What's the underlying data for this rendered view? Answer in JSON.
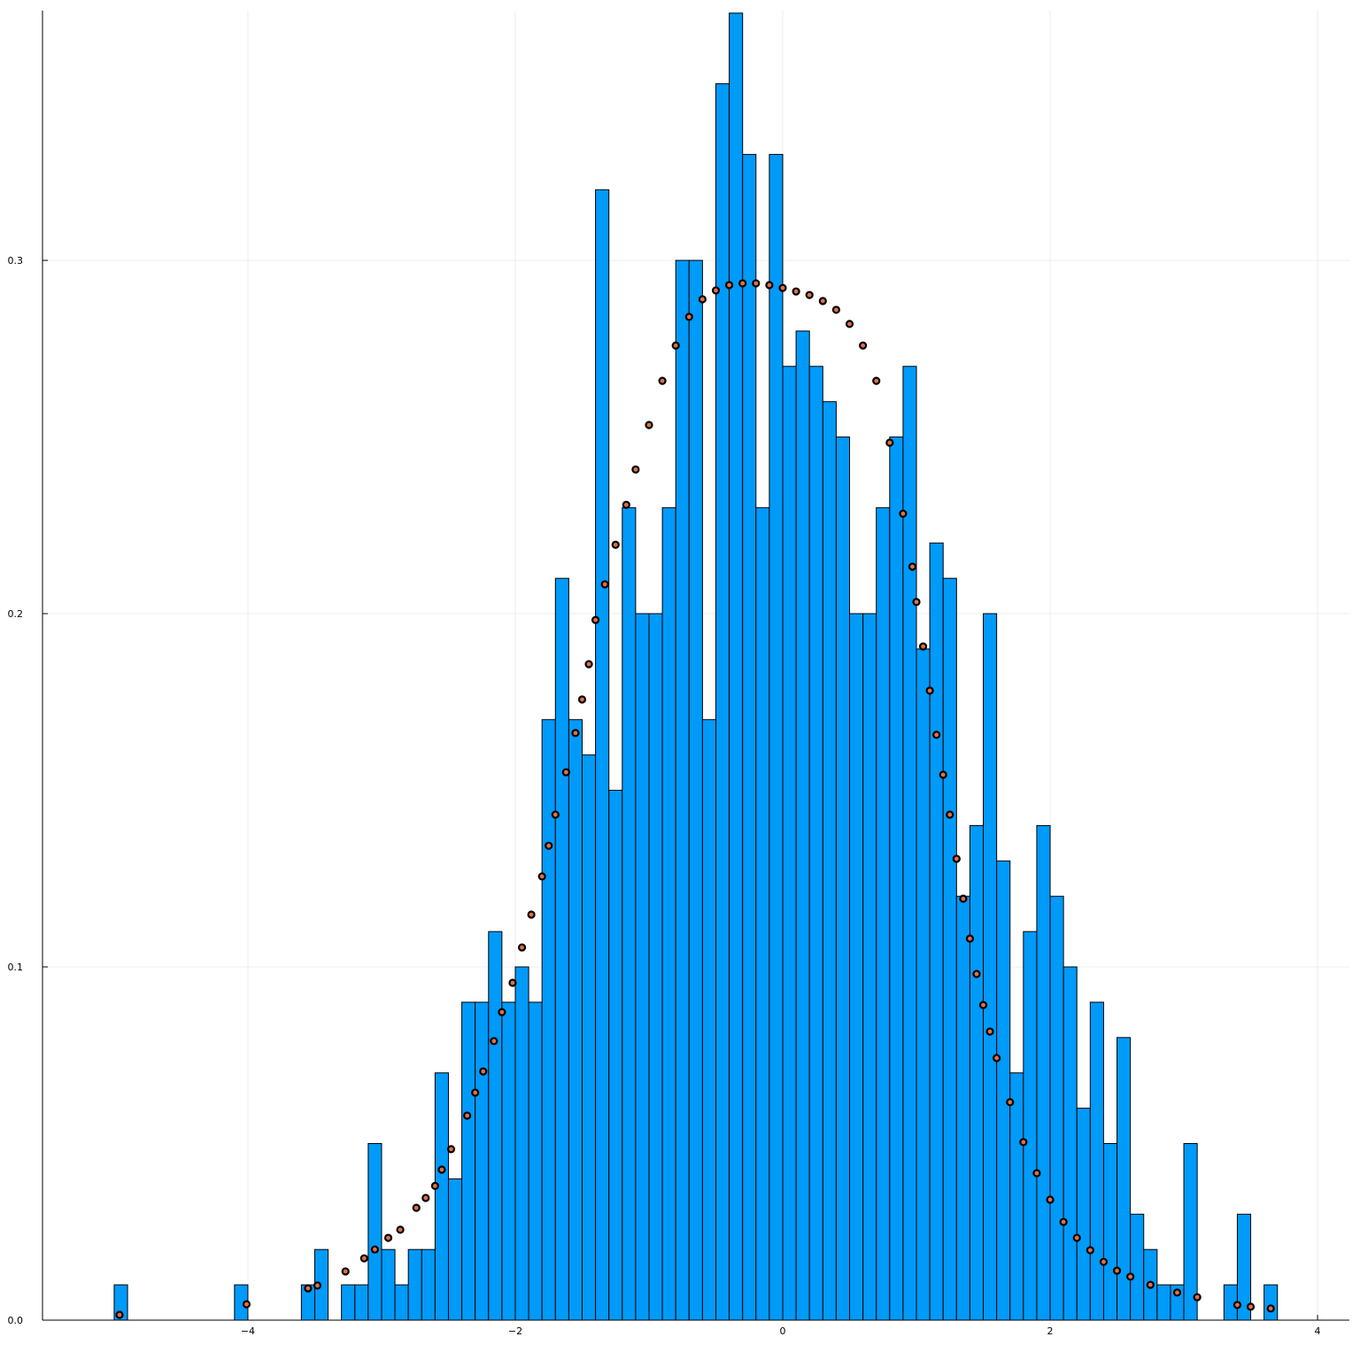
{
  "chart_data": {
    "type": "histogram",
    "bins": [
      -5,
      -4.9,
      -4.8,
      -4.7,
      -4.6,
      -4.5,
      -4.4,
      -4.3,
      -4.2,
      -4.1,
      -4,
      -3.9,
      -3.8,
      -3.7,
      -3.6,
      -3.5,
      -3.4,
      -3.3,
      -3.2,
      -3.1,
      -3,
      -2.9,
      -2.8,
      -2.7,
      -2.6,
      -2.5,
      -2.4,
      -2.3,
      -2.2,
      -2.1,
      -2,
      -1.9,
      -1.8,
      -1.7,
      -1.6,
      -1.5,
      -1.4,
      -1.3,
      -1.2,
      -1.1,
      -1,
      -0.9,
      -0.8,
      -0.7,
      -0.6,
      -0.5,
      -0.4,
      -0.3,
      -0.2,
      -0.1,
      0,
      0.1,
      0.2,
      0.3,
      0.4,
      0.5,
      0.6,
      0.7,
      0.8,
      0.9,
      1,
      1.1,
      1.2,
      1.3,
      1.4,
      1.5,
      1.6,
      1.7,
      1.8,
      1.9,
      2,
      2.1,
      2.2,
      2.3,
      2.4,
      2.5,
      2.6,
      2.7,
      2.8,
      2.9,
      3,
      3.1,
      3.2,
      3.3,
      3.4,
      3.5,
      3.6,
      3.7
    ],
    "values": [
      0.01,
      0,
      0,
      0,
      0,
      0,
      0,
      0,
      0,
      0.01,
      0,
      0,
      0,
      0,
      0.01,
      0.02,
      0,
      0.01,
      0.01,
      0.05,
      0.02,
      0.01,
      0.02,
      0.02,
      0.07,
      0.04,
      0.09,
      0.09,
      0.11,
      0.09,
      0.1,
      0.09,
      0.17,
      0.21,
      0.17,
      0.16,
      0.32,
      0.15,
      0.23,
      0.2,
      0.2,
      0.23,
      0.3,
      0.3,
      0.17,
      0.35,
      0.37,
      0.33,
      0.23,
      0.33,
      0.27,
      0.28,
      0.27,
      0.26,
      0.25,
      0.2,
      0.2,
      0.23,
      0.25,
      0.27,
      0.19,
      0.22,
      0.21,
      0.12,
      0.14,
      0.2,
      0.13,
      0.07,
      0.11,
      0.14,
      0.12,
      0.1,
      0.06,
      0.09,
      0.05,
      0.08,
      0.03,
      0.02,
      0.01,
      0.01,
      0.05,
      0,
      0,
      0.01,
      0.03,
      0,
      0.01
    ],
    "color": "#009af9",
    "overlay": {
      "type": "scatter",
      "color": "#e26f46",
      "edgecolor": "#000000",
      "x": [
        -4.96,
        -4.01,
        -3.55,
        -3.48,
        -3.27,
        -3.13,
        -3.05,
        -2.95,
        -2.86,
        -2.74,
        -2.67,
        -2.6,
        -2.55,
        -2.48,
        -2.36,
        -2.3,
        -2.24,
        -2.16,
        -2.1,
        -2.02,
        -1.95,
        -1.88,
        -1.8,
        -1.75,
        -1.7,
        -1.62,
        -1.55,
        -1.5,
        -1.45,
        -1.4,
        -1.33,
        -1.25,
        -1.17,
        -1.1,
        -1,
        -0.9,
        -0.8,
        -0.7,
        -0.6,
        -0.5,
        -0.4,
        -0.3,
        -0.2,
        -0.1,
        0,
        0.1,
        0.2,
        0.3,
        0.4,
        0.5,
        0.6,
        0.7,
        0.8,
        0.9,
        0.97,
        1,
        1.05,
        1.1,
        1.15,
        1.2,
        1.25,
        1.3,
        1.35,
        1.4,
        1.45,
        1.5,
        1.55,
        1.6,
        1.7,
        1.8,
        1.9,
        2,
        2.1,
        2.2,
        2.3,
        2.4,
        2.5,
        2.6,
        2.75,
        2.95,
        3.1,
        3.4,
        3.5,
        3.65
      ],
      "y": [
        0.0015,
        0.0045,
        0.009,
        0.0098,
        0.0138,
        0.0175,
        0.02,
        0.0233,
        0.0256,
        0.0318,
        0.0346,
        0.038,
        0.0426,
        0.0484,
        0.0579,
        0.0644,
        0.0704,
        0.079,
        0.0872,
        0.0955,
        0.1055,
        0.1148,
        0.1256,
        0.1343,
        0.1431,
        0.1551,
        0.1662,
        0.1757,
        0.1857,
        0.1982,
        0.2083,
        0.2195,
        0.2308,
        0.2408,
        0.2534,
        0.2659,
        0.2759,
        0.284,
        0.289,
        0.2915,
        0.293,
        0.2935,
        0.2935,
        0.293,
        0.2922,
        0.2912,
        0.2902,
        0.2885,
        0.286,
        0.282,
        0.2759,
        0.2659,
        0.2484,
        0.2283,
        0.2133,
        0.2033,
        0.1907,
        0.1782,
        0.1657,
        0.1544,
        0.1431,
        0.1306,
        0.1193,
        0.108,
        0.098,
        0.0892,
        0.0817,
        0.0742,
        0.0617,
        0.0504,
        0.0416,
        0.0341,
        0.0278,
        0.0233,
        0.0198,
        0.0165,
        0.014,
        0.0123,
        0.01,
        0.0078,
        0.0065,
        0.0043,
        0.0038,
        0.0033
      ]
    },
    "xlim": [
      -5.536,
      4.238
    ],
    "ylim": [
      0,
      0.3707
    ],
    "xticks": [
      {
        "value": -4,
        "label": "−4"
      },
      {
        "value": -2,
        "label": "−2"
      },
      {
        "value": 0,
        "label": "0"
      },
      {
        "value": 2,
        "label": "2"
      },
      {
        "value": 4,
        "label": "4"
      }
    ],
    "yticks": [
      {
        "value": 0,
        "label": "0.0"
      },
      0.1,
      0.2,
      0.3
    ],
    "grid": true
  }
}
